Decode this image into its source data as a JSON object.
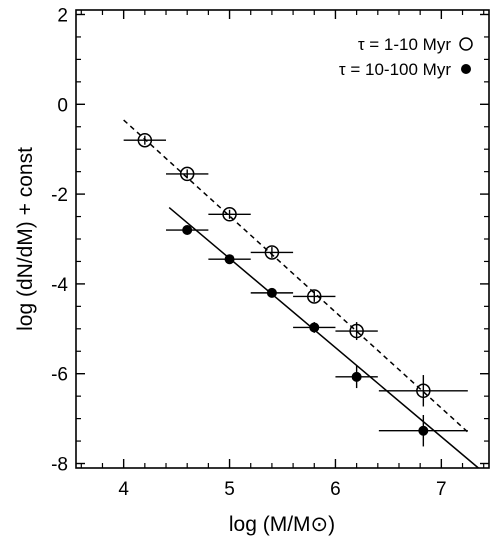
{
  "chart_data": {
    "type": "scatter",
    "xlabel": "log (M/M⊙)",
    "ylabel": "log (dN/dM) + const",
    "xlim": [
      3.55,
      7.45
    ],
    "ylim": [
      -8.1,
      2.1
    ],
    "xticks": [
      4,
      5,
      6,
      7
    ],
    "yticks": [
      -8,
      -6,
      -4,
      -2,
      0,
      2
    ],
    "grid": false,
    "legend_position": "top-right",
    "series": [
      {
        "name": "τ = 1-10 Myr",
        "marker": "open-circle",
        "x": [
          4.2,
          4.6,
          5.0,
          5.4,
          5.8,
          6.2,
          6.83
        ],
        "y": [
          -0.8,
          -1.55,
          -2.45,
          -3.3,
          -4.28,
          -5.05,
          -6.38
        ],
        "xerr": [
          0.2,
          0.2,
          0.2,
          0.2,
          0.2,
          0.2,
          0.42
        ],
        "yerr": [
          0.1,
          0.1,
          0.1,
          0.12,
          0.12,
          0.2,
          0.35
        ],
        "fit": {
          "style": "dashed",
          "x": [
            4.0,
            7.25
          ],
          "y": [
            -0.35,
            -7.3
          ]
        }
      },
      {
        "name": "τ = 10-100 Myr",
        "marker": "filled-circle",
        "x": [
          4.6,
          5.0,
          5.4,
          5.8,
          6.2,
          6.83
        ],
        "y": [
          -2.8,
          -3.45,
          -4.2,
          -4.97,
          -6.07,
          -7.27
        ],
        "xerr": [
          0.2,
          0.2,
          0.2,
          0.2,
          0.2,
          0.42
        ],
        "yerr": [
          0.08,
          0.08,
          0.1,
          0.12,
          0.25,
          0.35
        ],
        "fit": {
          "style": "solid",
          "x": [
            4.43,
            7.35
          ],
          "y": [
            -2.3,
            -8.1
          ]
        }
      }
    ]
  }
}
